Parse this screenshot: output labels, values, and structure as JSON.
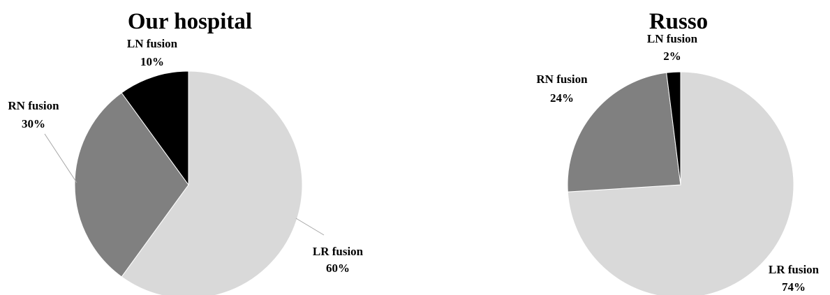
{
  "chart_data": [
    {
      "type": "pie",
      "title": "Our hospital",
      "start_angle_deg": 0,
      "direction": "clockwise",
      "slices": [
        {
          "name": "LR fusion",
          "value": 60,
          "value_label": "60%",
          "color": "#d9d9d9"
        },
        {
          "name": "RN fusion",
          "value": 30,
          "value_label": "30%",
          "color": "#808080"
        },
        {
          "name": "LN fusion",
          "value": 10,
          "value_label": "10%",
          "color": "#000000"
        }
      ]
    },
    {
      "type": "pie",
      "title": "Russo",
      "start_angle_deg": 0,
      "direction": "clockwise",
      "slices": [
        {
          "name": "LR fusion",
          "value": 74,
          "value_label": "74%",
          "color": "#d9d9d9"
        },
        {
          "name": "RN fusion",
          "value": 24,
          "value_label": "24%",
          "color": "#808080"
        },
        {
          "name": "LN fusion",
          "value": 2,
          "value_label": "2%",
          "color": "#000000"
        }
      ]
    }
  ]
}
